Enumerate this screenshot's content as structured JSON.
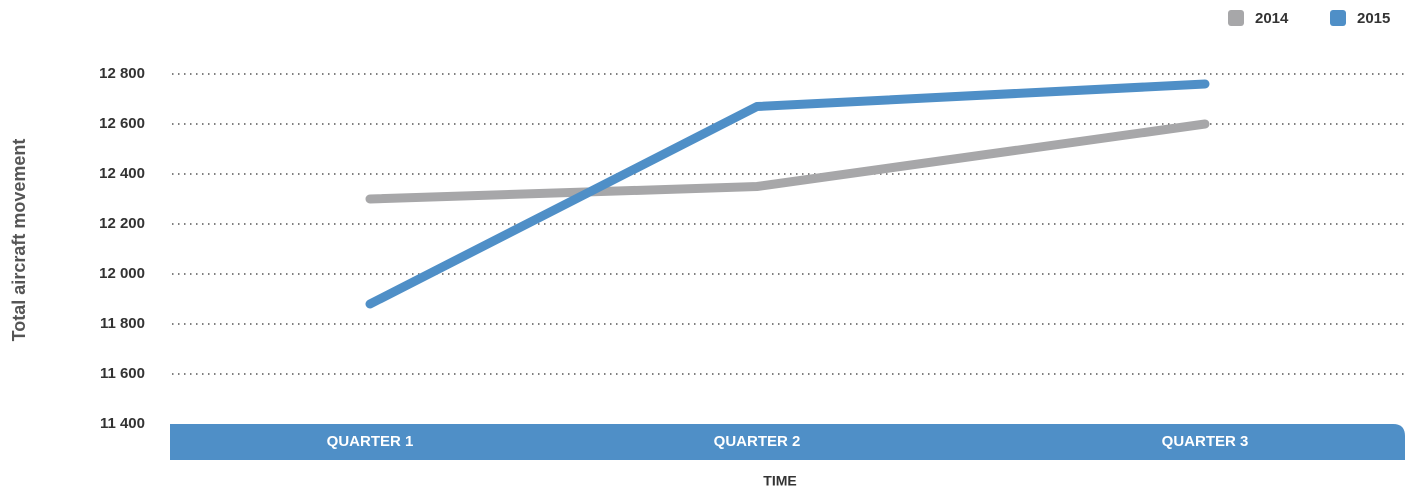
{
  "chart_data": {
    "type": "line",
    "categories": [
      "QUARTER 1",
      "QUARTER 2",
      "QUARTER 3"
    ],
    "series": [
      {
        "name": "2014",
        "color": "#a7a7a9",
        "values": [
          12300,
          12350,
          12600
        ]
      },
      {
        "name": "2015",
        "color": "#4f8fc7",
        "values": [
          11880,
          12670,
          12760
        ]
      }
    ],
    "xlabel": "TIME",
    "ylabel": "Total aircraft movement",
    "ylim": [
      11400,
      12800
    ],
    "yticks": [
      {
        "value": 11400,
        "label": "11 400"
      },
      {
        "value": 11600,
        "label": "11 600"
      },
      {
        "value": 11800,
        "label": "11 800"
      },
      {
        "value": 12000,
        "label": "12 000"
      },
      {
        "value": 12200,
        "label": "12 200"
      },
      {
        "value": 12400,
        "label": "12 400"
      },
      {
        "value": 12600,
        "label": "12 600"
      },
      {
        "value": 12800,
        "label": "12 800"
      }
    ],
    "grid": true,
    "legend": "top-right"
  }
}
